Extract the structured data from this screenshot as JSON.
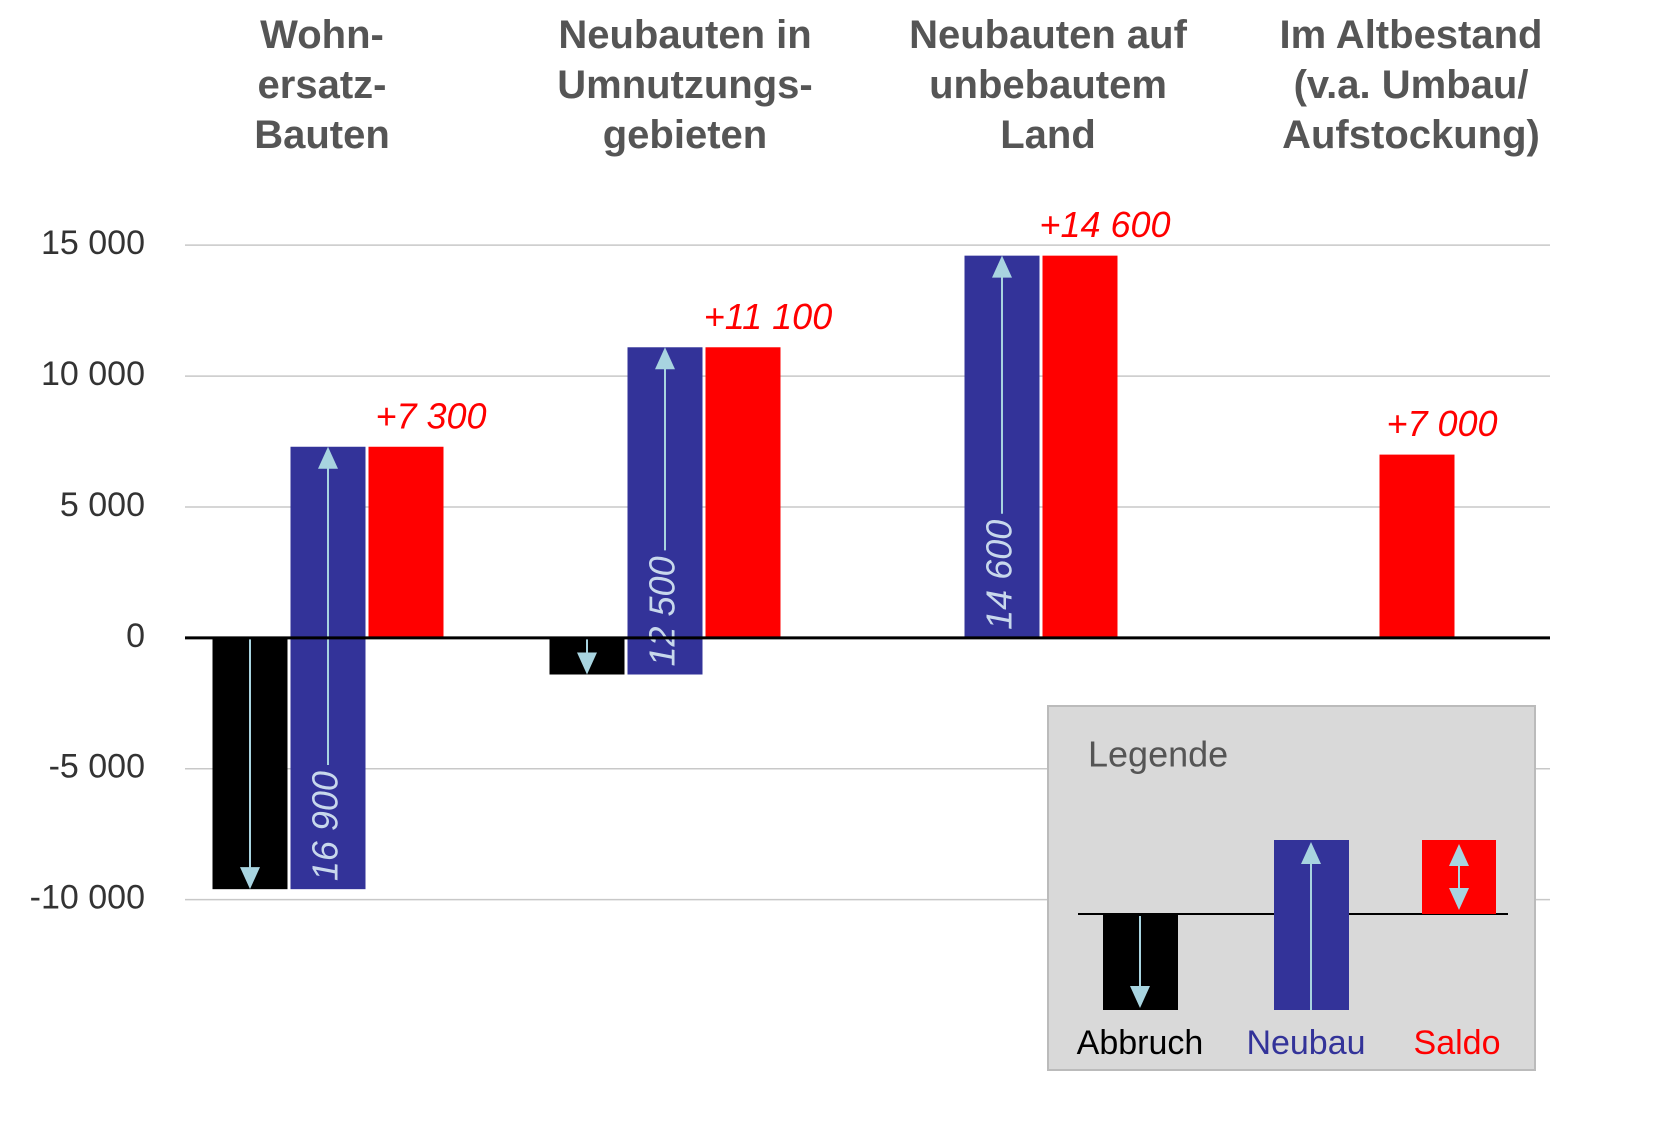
{
  "chart_data": {
    "type": "bar",
    "categories": [
      "Wohn-\nersatz-\nBauten",
      "Neubauten in\nUmnutzungs-\ngebieten",
      "Neubauten auf\nunbebautem\nLand",
      "Im Altbestand\n(v.a. Umbau/\nAufstockung)"
    ],
    "series": [
      {
        "name": "Abbruch",
        "color": "#000000",
        "values": [
          -9600,
          -1400,
          null,
          null
        ]
      },
      {
        "name": "Neubau",
        "color": "#333399",
        "values": [
          16900,
          12500,
          14600,
          null
        ],
        "value_labels": [
          "16 900",
          "12 500",
          "14 600",
          null
        ]
      },
      {
        "name": "Saldo",
        "color": "#ff0000",
        "values": [
          7300,
          11100,
          14600,
          7000
        ],
        "value_labels": [
          "+7 300",
          "+11 100",
          "+14 600",
          "+7 000"
        ]
      }
    ],
    "legend_title": "Legende",
    "legend": "lower right",
    "ylim": [
      -12000,
      16000
    ],
    "yticks": [
      {
        "value": -10000,
        "label": "-10 000"
      },
      {
        "value": -5000,
        "label": "-5 000"
      },
      0,
      {
        "value": 5000,
        "label": "5 000"
      },
      {
        "value": 10000,
        "label": "10 000"
      },
      {
        "value": 15000,
        "label": "15 000"
      }
    ],
    "grid": true
  }
}
